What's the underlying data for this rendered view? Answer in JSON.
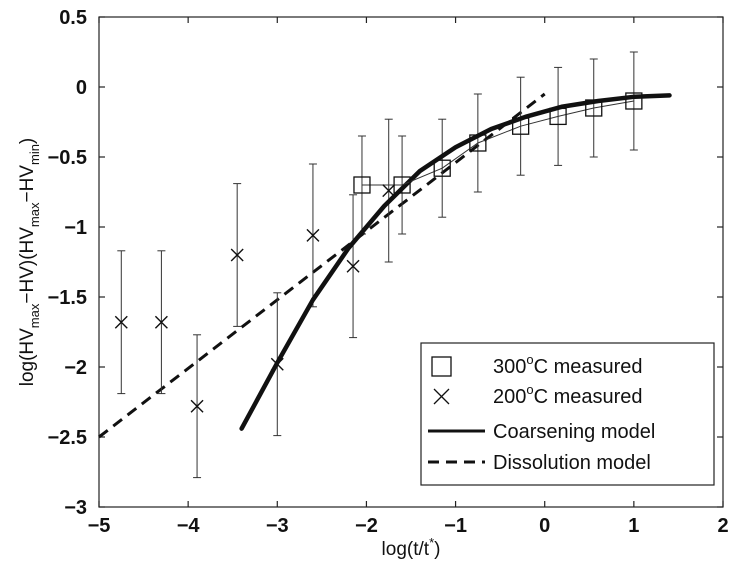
{
  "chart_data": {
    "type": "scatter",
    "xlim": [
      -5,
      2
    ],
    "ylim": [
      -3,
      0.5
    ],
    "xticks": [
      "−5",
      "−4",
      "−3",
      "−2",
      "−1",
      "0",
      "1",
      "2"
    ],
    "yticks": [
      "0.5",
      "0",
      "−0.5",
      "−1",
      "−1.5",
      "−2",
      "−2.5",
      "−3"
    ],
    "grid": false,
    "legend_position": "bottom-right",
    "xlabel": {
      "pre": "log(t/t",
      "sup": "*",
      "post": ")"
    },
    "ylabel": {
      "p1": "log(HV",
      "s1": "max",
      "p2": "−HV)(HV",
      "s2": "max",
      "p3": "−HV",
      "s3": "min",
      "p4": ")"
    },
    "series": [
      {
        "name": {
          "pre": "300",
          "sup": "o",
          "post": "C measured"
        },
        "kind": "marker-square",
        "points": [
          {
            "x": -2.05,
            "y": -0.7,
            "err": 0.35
          },
          {
            "x": -1.6,
            "y": -0.7,
            "err": 0.35
          },
          {
            "x": -1.15,
            "y": -0.58,
            "err": 0.35
          },
          {
            "x": -0.75,
            "y": -0.4,
            "err": 0.35
          },
          {
            "x": -0.27,
            "y": -0.28,
            "err": 0.35
          },
          {
            "x": 0.15,
            "y": -0.21,
            "err": 0.35
          },
          {
            "x": 0.55,
            "y": -0.15,
            "err": 0.35
          },
          {
            "x": 1.0,
            "y": -0.1,
            "err": 0.35
          }
        ]
      },
      {
        "name": {
          "pre": "200",
          "sup": "o",
          "post": "C measured"
        },
        "kind": "marker-cross",
        "points": [
          {
            "x": -4.75,
            "y": -1.68,
            "err": 0.51
          },
          {
            "x": -4.3,
            "y": -1.68,
            "err": 0.51
          },
          {
            "x": -3.9,
            "y": -2.28,
            "err": 0.51
          },
          {
            "x": -3.45,
            "y": -1.2,
            "err": 0.51
          },
          {
            "x": -3.0,
            "y": -1.98,
            "err": 0.51
          },
          {
            "x": -2.6,
            "y": -1.06,
            "err": 0.51
          },
          {
            "x": -2.15,
            "y": -1.28,
            "err": 0.51
          },
          {
            "x": -1.75,
            "y": -0.74,
            "err": 0.51
          }
        ]
      },
      {
        "name": {
          "pre": "Coarsening model",
          "sup": "",
          "post": ""
        },
        "kind": "line-solid",
        "x": [
          -3.4,
          -3.0,
          -2.6,
          -2.2,
          -1.8,
          -1.4,
          -1.0,
          -0.6,
          -0.2,
          0.2,
          0.6,
          1.0,
          1.4
        ],
        "y": [
          -2.44,
          -1.97,
          -1.52,
          -1.15,
          -0.85,
          -0.6,
          -0.43,
          -0.3,
          -0.21,
          -0.14,
          -0.1,
          -0.07,
          -0.06
        ]
      },
      {
        "name": {
          "pre": "Dissolution model",
          "sup": "",
          "post": ""
        },
        "kind": "line-dashed",
        "x": [
          -5.0,
          0.0
        ],
        "y": [
          -2.5,
          -0.05
        ]
      }
    ]
  }
}
